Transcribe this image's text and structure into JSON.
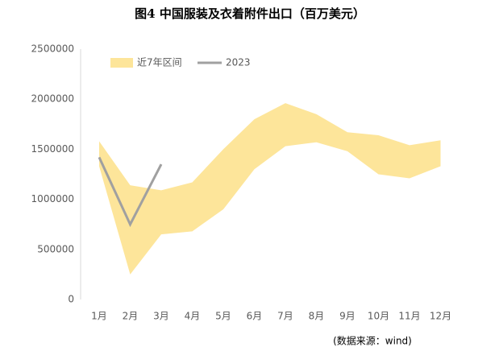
{
  "chart_data": {
    "type": "range-line",
    "title": "图4 中国服装及衣着附件出口（百万美元）",
    "source": "(数据来源：wind)",
    "categories": [
      "1月",
      "2月",
      "3月",
      "4月",
      "5月",
      "6月",
      "7月",
      "8月",
      "9月",
      "10月",
      "11月",
      "12月"
    ],
    "series": [
      {
        "name": "近7年区间",
        "color": "#fde59a",
        "high": [
          1580000,
          1140000,
          1090000,
          1170000,
          1500000,
          1800000,
          1960000,
          1850000,
          1670000,
          1640000,
          1540000,
          1590000
        ],
        "low": [
          1330000,
          250000,
          650000,
          680000,
          900000,
          1300000,
          1530000,
          1570000,
          1480000,
          1250000,
          1210000,
          1330000
        ]
      },
      {
        "name": "2023",
        "color": "#a0a0a0",
        "values": [
          1420000,
          750000,
          1350000,
          null,
          null,
          null,
          null,
          null,
          null,
          null,
          null,
          null
        ]
      }
    ],
    "ylim": [
      0,
      2500000
    ],
    "yticks": [
      0,
      500000,
      1000000,
      1500000,
      2000000,
      2500000
    ],
    "grid": false
  }
}
